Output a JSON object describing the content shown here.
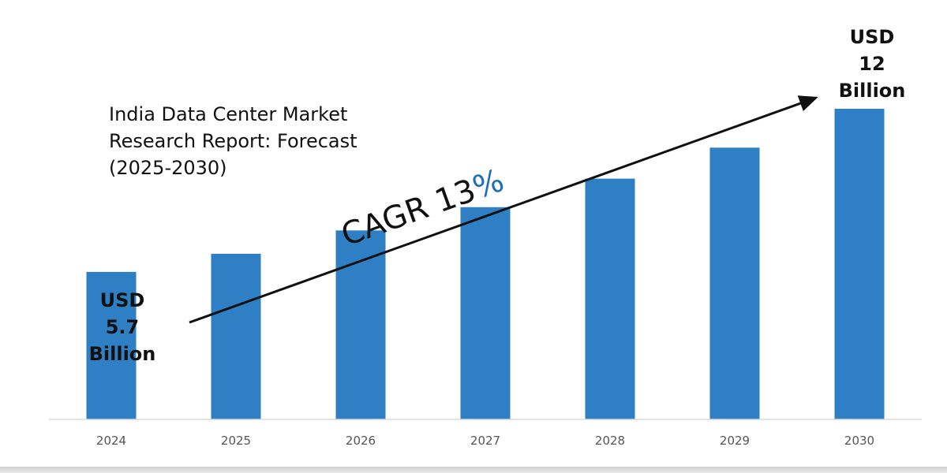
{
  "chart_data": {
    "type": "bar",
    "title_lines": [
      "India Data Center Market",
      "Research Report: Forecast",
      "(2025-2030)"
    ],
    "categories": [
      "2024",
      "2025",
      "2026",
      "2027",
      "2028",
      "2029",
      "2030"
    ],
    "values": [
      5.7,
      6.4,
      7.3,
      8.2,
      9.3,
      10.5,
      12.0
    ],
    "unit": "USD Billion",
    "xlabel": "",
    "ylabel": "",
    "ylim": [
      0,
      12.6
    ],
    "grid": false,
    "legend": "none",
    "bar_color": "#2e7fc4",
    "annotations": {
      "start_value": [
        "USD",
        "5.7",
        "Billion"
      ],
      "end_value": [
        "USD",
        "12",
        "Billion"
      ],
      "cagr_text": "CAGR 13",
      "cagr_symbol": "%",
      "cagr_symbol_color": "#1f6fb8"
    }
  }
}
